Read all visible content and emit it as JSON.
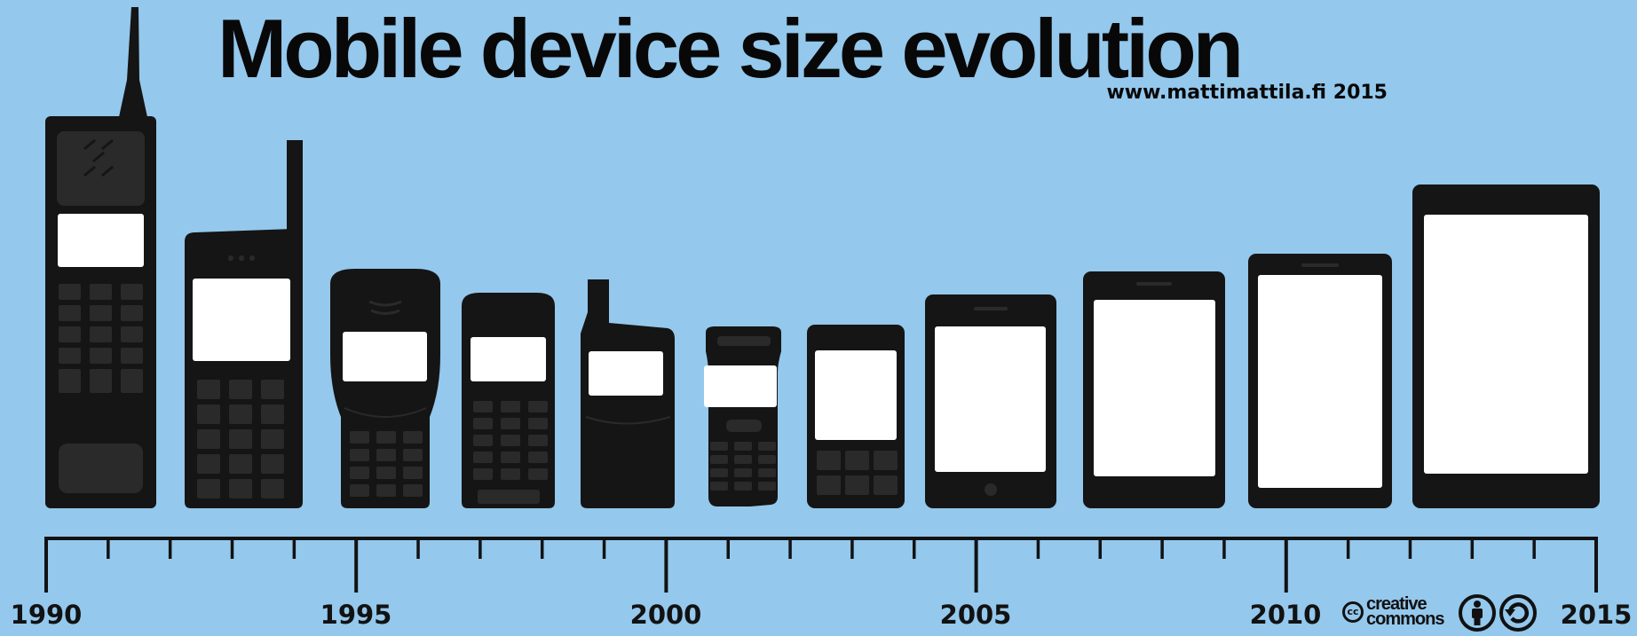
{
  "title": "Mobile device size evolution",
  "credit": "www.mattimattila.fi 2015",
  "colors": {
    "background": "#94c8ec",
    "device": "#151515",
    "device_detail": "#2a2a2a",
    "screen": "#ffffff",
    "timeline": "#121212"
  },
  "timeline": {
    "start_year": 1990,
    "end_year": 2015,
    "labels": [
      "1990",
      "1995",
      "2000",
      "2005",
      "2010",
      "2015"
    ]
  },
  "devices": [
    {
      "id": "brick-phone",
      "kind": "brick"
    },
    {
      "id": "bar-phone-antenna",
      "kind": "bar-antenna"
    },
    {
      "id": "candybar-phone",
      "kind": "candybar"
    },
    {
      "id": "compact-phone",
      "kind": "compact"
    },
    {
      "id": "stub-antenna-phone",
      "kind": "stub-antenna"
    },
    {
      "id": "slim-phone",
      "kind": "slim"
    },
    {
      "id": "qwerty-phone",
      "kind": "qwerty"
    },
    {
      "id": "smartphone-small",
      "kind": "smartphone"
    },
    {
      "id": "smartphone-large",
      "kind": "smartphone"
    },
    {
      "id": "phablet",
      "kind": "phablet"
    },
    {
      "id": "tablet",
      "kind": "tablet"
    }
  ],
  "license": {
    "logo_line_1": "creative",
    "logo_line_2": "commons",
    "logo_mark": "cc",
    "icons": [
      "cc-logo-icon",
      "attribution-icon",
      "share-alike-icon"
    ]
  }
}
